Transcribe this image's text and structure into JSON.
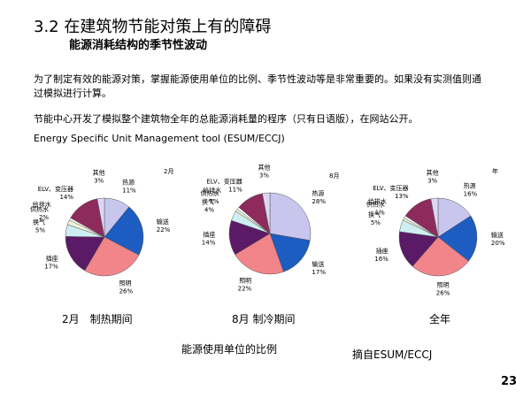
{
  "header": {
    "title": "3.2 在建筑物节能对策上有的障碍",
    "subtitle": "能源消耗结构的季节性波动"
  },
  "paragraphs": [
    "为了制定有效的能源对策，掌握能源使用单位的比例、季节性波动等是非常重要的。如果没有实测值则通过模拟进行计算。",
    "节能中心开发了模拟整个建筑物全年的总能源消耗量的程序（只有日语版），在网站公开。",
    "Energy Specific Unit Management tool (ESUM/ECCJ)"
  ],
  "chart_data": [
    {
      "type": "pie",
      "title": "2月",
      "categories": [
        "热源",
        "输送",
        "照明",
        "插座",
        "换气",
        "供热水",
        "给排水",
        "ELV、变压器",
        "其他"
      ],
      "values": [
        11,
        22,
        26,
        17,
        5,
        2,
        1,
        14,
        3
      ],
      "value_labels": [
        "11%",
        "22%",
        "26%",
        "17%",
        "5%",
        "2%",
        null,
        "14%",
        "3%"
      ],
      "colors": [
        "#c9c6ee",
        "#1d5cc0",
        "#f2858a",
        "#5b1a66",
        "#cdeff2",
        "#f4f4dc",
        "#ffffff",
        "#8d2b5c",
        "#dcd8f4"
      ]
    },
    {
      "type": "pie",
      "title": "8月",
      "categories": [
        "热源",
        "输送",
        "照明",
        "插座",
        "换气",
        "供热水",
        "给排水",
        "ELV、变压器",
        "其他"
      ],
      "values": [
        28,
        17,
        22,
        14,
        4,
        1,
        1,
        11,
        3
      ],
      "value_labels": [
        "28%",
        "17%",
        "22%",
        "14%",
        "4%",
        "1%",
        null,
        "11%",
        "3%"
      ],
      "colors": [
        "#c9c6ee",
        "#1d5cc0",
        "#f2858a",
        "#5b1a66",
        "#cdeff2",
        "#f4f4dc",
        "#ffffff",
        "#8d2b5c",
        "#dcd8f4"
      ]
    },
    {
      "type": "pie",
      "title": "年",
      "categories": [
        "热源",
        "输送",
        "照明",
        "插座",
        "换气",
        "供热水",
        "给排水",
        "ELV、变压器",
        "其他"
      ],
      "values": [
        16,
        20,
        26,
        16,
        5,
        1,
        1,
        13,
        3
      ],
      "value_labels": [
        "16%",
        "20%",
        "26%",
        "16%",
        "5%",
        "1%",
        null,
        "13%",
        "3%"
      ],
      "colors": [
        "#c9c6ee",
        "#1d5cc0",
        "#f2858a",
        "#5b1a66",
        "#cdeff2",
        "#f4f4dc",
        "#ffffff",
        "#8d2b5c",
        "#dcd8f4"
      ]
    }
  ],
  "captions": [
    "2月　制热期间",
    "8月 制冷期间",
    "全年"
  ],
  "figure_caption": "能源使用单位的比例",
  "source": "摘自ESUM/ECCJ",
  "page_number": "23"
}
